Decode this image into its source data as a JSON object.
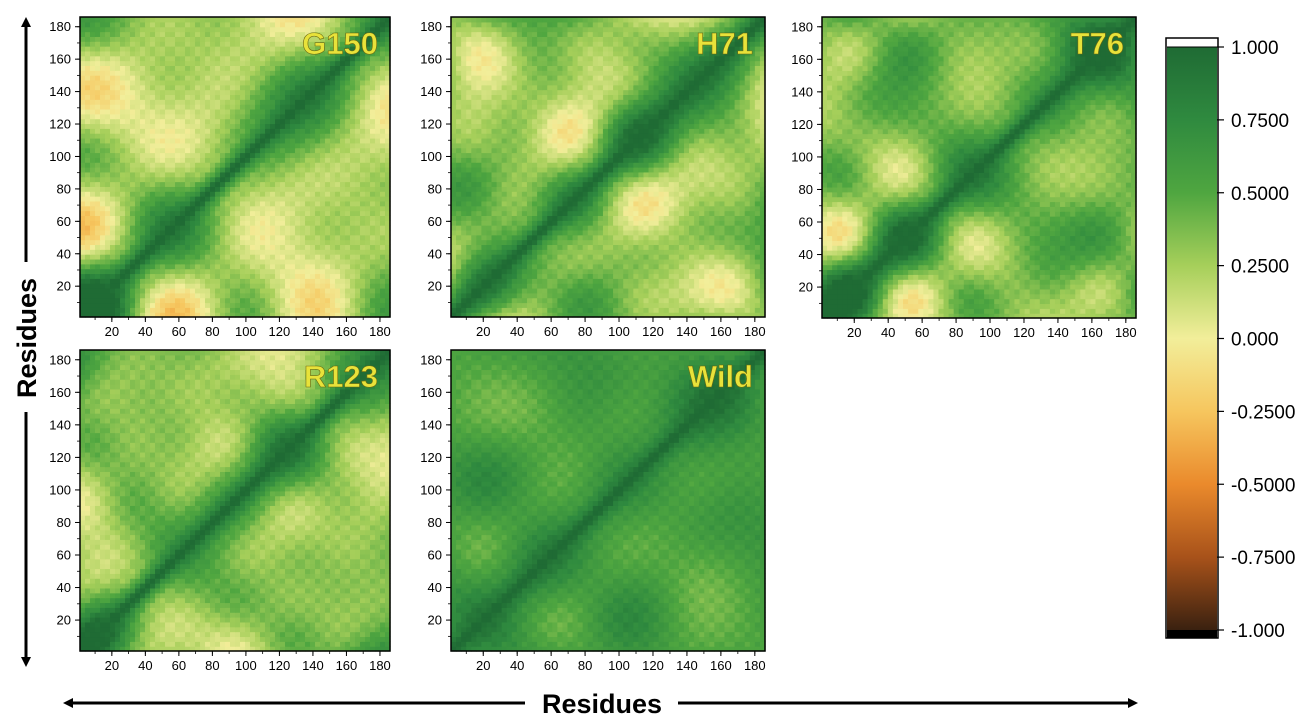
{
  "figure": {
    "y_axis_label": "Residues",
    "x_axis_label": "Residues"
  },
  "chart_data": {
    "type": "heatmap",
    "panels": [
      {
        "label": "G150"
      },
      {
        "label": "H71"
      },
      {
        "label": "T76"
      },
      {
        "label": "R123"
      },
      {
        "label": "Wild"
      }
    ],
    "x_ticks": [
      "20",
      "40",
      "60",
      "80",
      "100",
      "120",
      "140",
      "160",
      "180"
    ],
    "y_ticks": [
      "20",
      "40",
      "60",
      "80",
      "100",
      "120",
      "140",
      "160",
      "180"
    ],
    "x_range": [
      1,
      186
    ],
    "y_range": [
      1,
      186
    ],
    "colorbar": {
      "range": [
        -1.0,
        1.0
      ],
      "ticks": [
        "1.000",
        "0.7500",
        "0.5000",
        "0.2500",
        "0.000",
        "-0.2500",
        "-0.5000",
        "-0.7500",
        "-1.000"
      ],
      "tick_values": [
        1.0,
        0.75,
        0.5,
        0.25,
        0.0,
        -0.25,
        -0.5,
        -0.75,
        -1.0
      ],
      "stops": [
        {
          "value": 1.0,
          "color": "#1f6b34"
        },
        {
          "value": 0.75,
          "color": "#2f8a3f"
        },
        {
          "value": 0.5,
          "color": "#4fa640"
        },
        {
          "value": 0.25,
          "color": "#a6cf5a"
        },
        {
          "value": 0.0,
          "color": "#f2ee9a"
        },
        {
          "value": -0.25,
          "color": "#f6c65e"
        },
        {
          "value": -0.5,
          "color": "#ea8a2c"
        },
        {
          "value": -0.75,
          "color": "#a8521a"
        },
        {
          "value": -1.0,
          "color": "#3a2110"
        }
      ]
    }
  }
}
